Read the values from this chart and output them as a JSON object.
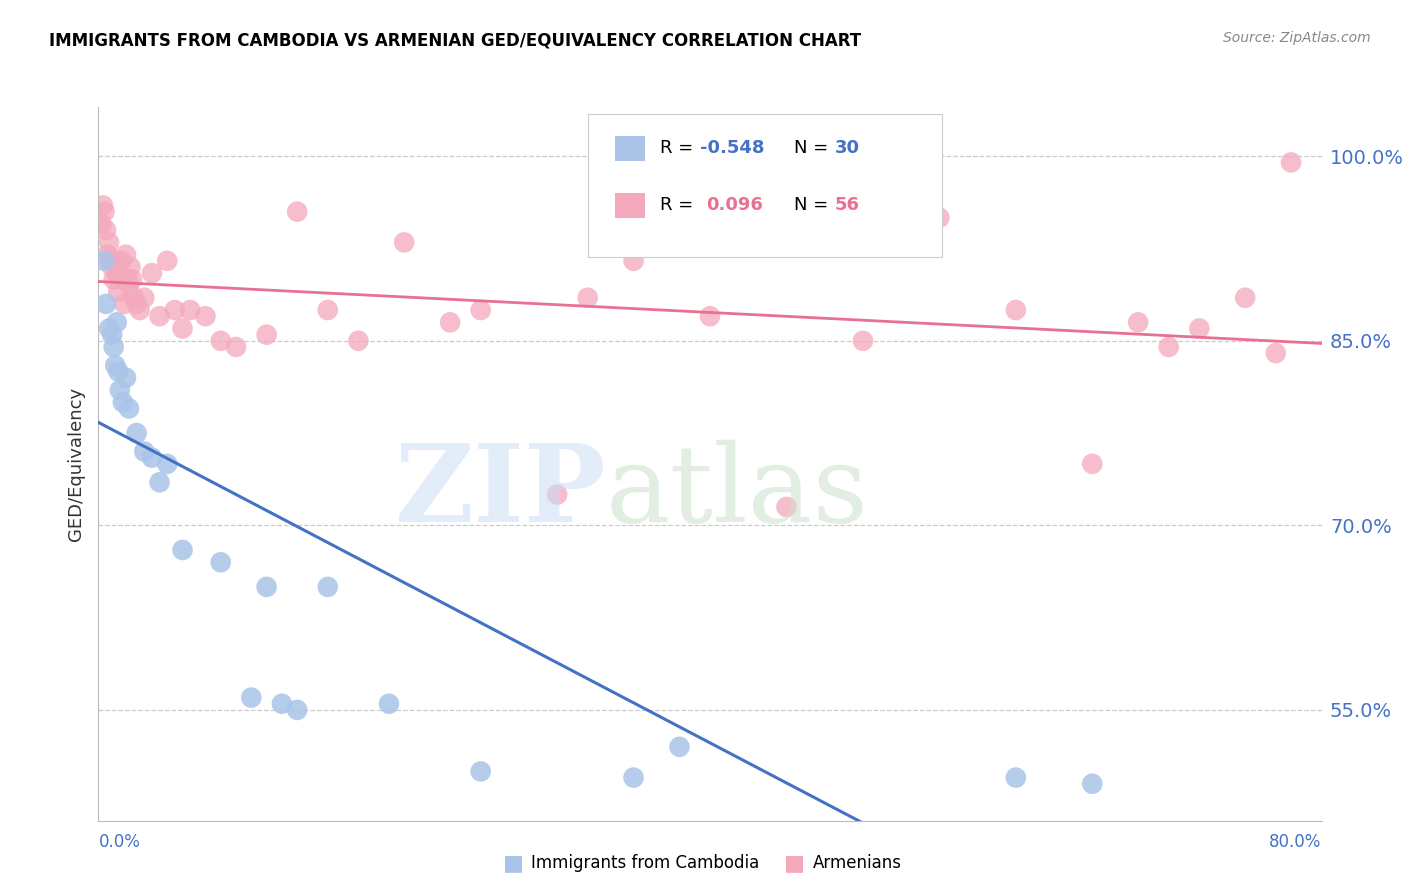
{
  "title": "IMMIGRANTS FROM CAMBODIA VS ARMENIAN GED/EQUIVALENCY CORRELATION CHART",
  "source": "Source: ZipAtlas.com",
  "ylabel": "GED/Equivalency",
  "yaxis_ticks": [
    55.0,
    70.0,
    85.0,
    100.0
  ],
  "xmin": 0.0,
  "xmax": 80.0,
  "ymin": 46.0,
  "ymax": 104.0,
  "cambodia_color": "#aac4e8",
  "armenian_color": "#f4a8bc",
  "cambodia_line_color": "#4472c4",
  "armenian_line_color": "#e87090",
  "grid_color": "#cccccc",
  "footer_label1": "Immigrants from Cambodia",
  "footer_label2": "Armenians",
  "legend_r1": "R = ",
  "legend_r1_val": "-0.548",
  "legend_n1": "N = ",
  "legend_n1_val": "30",
  "legend_r2": "R =  ",
  "legend_r2_val": "0.096",
  "legend_n2": "N = ",
  "legend_n2_val": "56",
  "cambodia_x": [
    0.4,
    0.5,
    0.7,
    0.9,
    1.0,
    1.1,
    1.2,
    1.3,
    1.4,
    1.6,
    1.8,
    2.0,
    2.5,
    3.0,
    3.5,
    4.0,
    4.5,
    5.5,
    8.0,
    10.0,
    11.0,
    12.0,
    13.0,
    15.0,
    19.0,
    25.0,
    35.0,
    38.0,
    60.0,
    65.0
  ],
  "cambodia_y": [
    91.5,
    88.0,
    86.0,
    85.5,
    84.5,
    83.0,
    86.5,
    82.5,
    81.0,
    80.0,
    82.0,
    79.5,
    77.5,
    76.0,
    75.5,
    73.5,
    75.0,
    68.0,
    67.0,
    56.0,
    65.0,
    55.5,
    55.0,
    65.0,
    55.5,
    50.0,
    49.5,
    52.0,
    49.5,
    49.0
  ],
  "armenian_x": [
    0.2,
    0.3,
    0.4,
    0.5,
    0.6,
    0.7,
    0.8,
    0.9,
    1.0,
    1.1,
    1.2,
    1.3,
    1.4,
    1.5,
    1.6,
    1.7,
    1.8,
    1.9,
    2.0,
    2.1,
    2.2,
    2.3,
    2.5,
    2.7,
    3.0,
    3.5,
    4.0,
    4.5,
    5.0,
    5.5,
    6.0,
    7.0,
    8.0,
    9.0,
    11.0,
    13.0,
    15.0,
    17.0,
    20.0,
    23.0,
    25.0,
    30.0,
    32.0,
    35.0,
    40.0,
    45.0,
    50.0,
    55.0,
    60.0,
    65.0,
    68.0,
    70.0,
    72.0,
    75.0,
    77.0,
    78.0
  ],
  "armenian_y": [
    94.5,
    96.0,
    95.5,
    94.0,
    92.0,
    93.0,
    91.5,
    91.0,
    90.0,
    91.5,
    90.5,
    89.0,
    90.5,
    91.5,
    90.0,
    88.0,
    92.0,
    90.0,
    89.5,
    91.0,
    90.0,
    88.5,
    88.0,
    87.5,
    88.5,
    90.5,
    87.0,
    91.5,
    87.5,
    86.0,
    87.5,
    87.0,
    85.0,
    84.5,
    85.5,
    95.5,
    87.5,
    85.0,
    93.0,
    86.5,
    87.5,
    72.5,
    88.5,
    91.5,
    87.0,
    71.5,
    85.0,
    95.0,
    87.5,
    75.0,
    86.5,
    84.5,
    86.0,
    88.5,
    84.0,
    99.5
  ]
}
